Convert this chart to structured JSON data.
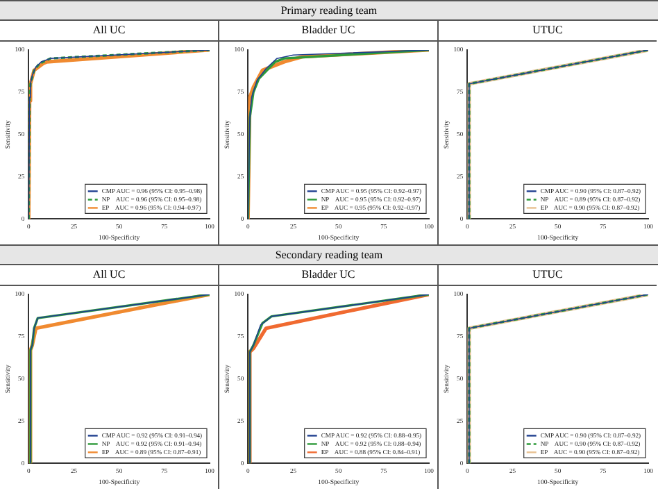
{
  "chart_data": [
    {
      "type": "other",
      "title": "Primary reading team"
    },
    {
      "type": "line",
      "title": "All UC",
      "xlabel": "100-Specificity",
      "ylabel": "Sensitivity",
      "xlim": [
        0,
        100
      ],
      "ylim": [
        0,
        100
      ],
      "xticks": [
        0,
        25,
        50,
        75,
        100
      ],
      "yticks": [
        0,
        25,
        50,
        75,
        100
      ],
      "grid": false,
      "legend": "bottom right",
      "marker": "none",
      "series": [
        {
          "name": "CMP AUC = 0.96 (95% CI: 0.95–0.98)",
          "color": "#1f3f8f",
          "line_style": "solid",
          "x": [
            0,
            0.5,
            1,
            2,
            4,
            7,
            12,
            100
          ],
          "values": [
            0,
            72,
            80,
            85,
            90,
            93,
            95,
            100
          ]
        },
        {
          "name": "NP    AUC = 0.96 (95% CI: 0.95–0.98)",
          "color": "#2e9a3a",
          "line_style": "dashed",
          "x": [
            0,
            0.5,
            1,
            3,
            6,
            12,
            100
          ],
          "values": [
            0,
            72,
            80,
            88,
            92,
            95,
            100
          ]
        },
        {
          "name": "EP    AUC = 0.96 (95% CI: 0.94–0.97)",
          "color": "#f08a30",
          "line_style": "solid",
          "x": [
            0,
            0.5,
            1,
            3,
            8,
            10,
            100
          ],
          "values": [
            0,
            70,
            80,
            88,
            92,
            93,
            100
          ]
        }
      ]
    },
    {
      "type": "line",
      "title": "Bladder UC",
      "xlabel": "100-Specificity",
      "ylabel": "Sensitivity",
      "xlim": [
        0,
        100
      ],
      "ylim": [
        0,
        100
      ],
      "xticks": [
        0,
        25,
        50,
        75,
        100
      ],
      "yticks": [
        0,
        25,
        50,
        75,
        100
      ],
      "grid": false,
      "legend": "bottom right",
      "marker": "none",
      "series": [
        {
          "name": "CMP AUC = 0.95 (95% CI: 0.92–0.97)",
          "color": "#1f3f8f",
          "line_style": "solid",
          "x": [
            0,
            1,
            2,
            5,
            10,
            16,
            25,
            100
          ],
          "values": [
            0,
            60,
            72,
            82,
            89,
            95,
            97,
            100
          ]
        },
        {
          "name": "NP    AUC = 0.95 (95% CI: 0.92–0.97)",
          "color": "#2e9a3a",
          "line_style": "solid",
          "x": [
            0,
            1,
            3,
            6,
            15,
            20,
            100
          ],
          "values": [
            0,
            60,
            75,
            83,
            93,
            95,
            100
          ]
        },
        {
          "name": "EP    AUC = 0.95 (95% CI: 0.92–0.97)",
          "color": "#f08a30",
          "line_style": "solid",
          "x": [
            0,
            1,
            3,
            8,
            20,
            30,
            100
          ],
          "values": [
            0,
            72,
            78,
            88,
            93,
            96,
            100
          ]
        }
      ]
    },
    {
      "type": "line",
      "title": "UTUC",
      "xlabel": "100-Specificity",
      "ylabel": "Sensitivity",
      "xlim": [
        0,
        100
      ],
      "ylim": [
        0,
        100
      ],
      "xticks": [
        0,
        25,
        50,
        75,
        100
      ],
      "yticks": [
        0,
        25,
        50,
        75,
        100
      ],
      "grid": false,
      "legend": "bottom right",
      "marker": "none",
      "series": [
        {
          "name": "CMP AUC = 0.90 (95% CI: 0.87–0.92)",
          "color": "#1f3f8f",
          "line_style": "solid",
          "x": [
            1,
            1,
            100
          ],
          "values": [
            0,
            80,
            100
          ]
        },
        {
          "name": "NP    AUC = 0.89 (95% CI: 0.87–0.92)",
          "color": "#2e9a3a",
          "line_style": "dashed",
          "x": [
            1,
            1,
            100
          ],
          "values": [
            0,
            80,
            100
          ]
        },
        {
          "name": "EP    AUC = 0.90 (95% CI: 0.87–0.92)",
          "color": "#e8c090",
          "line_style": "solid",
          "x": [
            1,
            1,
            100
          ],
          "values": [
            0,
            80,
            100
          ]
        }
      ]
    },
    {
      "type": "other",
      "title": "Secondary reading team"
    },
    {
      "type": "line",
      "title": "All UC",
      "xlabel": "100-Specificity",
      "ylabel": "Sensitivity",
      "xlim": [
        0,
        100
      ],
      "ylim": [
        0,
        100
      ],
      "xticks": [
        0,
        25,
        50,
        75,
        100
      ],
      "yticks": [
        0,
        25,
        50,
        75,
        100
      ],
      "grid": false,
      "legend": "bottom right",
      "marker": "none",
      "series": [
        {
          "name": "CMP AUC = 0.92 (95% CI: 0.91–0.94)",
          "color": "#1f3f8f",
          "line_style": "solid",
          "x": [
            1,
            1,
            2,
            3,
            5,
            100
          ],
          "values": [
            0,
            67,
            70,
            80,
            86,
            100
          ]
        },
        {
          "name": "NP    AUC = 0.92 (95% CI: 0.91–0.94)",
          "color": "#2e9a3a",
          "line_style": "solid",
          "x": [
            1,
            1,
            2,
            3,
            5,
            100
          ],
          "values": [
            0,
            67,
            70,
            80,
            86,
            100
          ]
        },
        {
          "name": "EP    AUC = 0.89 (95% CI: 0.87–0.91)",
          "color": "#f08a30",
          "line_style": "solid",
          "x": [
            1,
            1,
            2,
            4,
            100
          ],
          "values": [
            0,
            67,
            70,
            80,
            100
          ]
        }
      ]
    },
    {
      "type": "line",
      "title": "Bladder UC",
      "xlabel": "100-Specificity",
      "ylabel": "Sensitivity",
      "xlim": [
        0,
        100
      ],
      "ylim": [
        0,
        100
      ],
      "xticks": [
        0,
        25,
        50,
        75,
        100
      ],
      "yticks": [
        0,
        25,
        50,
        75,
        100
      ],
      "grid": false,
      "legend": "bottom right",
      "marker": "none",
      "series": [
        {
          "name": "CMP AUC = 0.92 (95% CI: 0.88–0.95)",
          "color": "#1f3f8f",
          "line_style": "solid",
          "x": [
            1,
            1,
            3,
            7,
            13,
            100
          ],
          "values": [
            0,
            66,
            70,
            82,
            87,
            100
          ]
        },
        {
          "name": "NP    AUC = 0.92 (95% CI: 0.88–0.94)",
          "color": "#2e9a3a",
          "line_style": "solid",
          "x": [
            1,
            1,
            3,
            8,
            13,
            100
          ],
          "values": [
            0,
            66,
            70,
            83,
            87,
            100
          ]
        },
        {
          "name": "EP    AUC = 0.88 (95% CI: 0.84–0.91)",
          "color": "#f06a30",
          "line_style": "solid",
          "x": [
            1,
            1,
            3,
            10,
            100
          ],
          "values": [
            0,
            66,
            68,
            80,
            100
          ]
        }
      ]
    },
    {
      "type": "line",
      "title": "UTUC",
      "xlabel": "100-Specificity",
      "ylabel": "Sensitivity",
      "xlim": [
        0,
        100
      ],
      "ylim": [
        0,
        100
      ],
      "xticks": [
        0,
        25,
        50,
        75,
        100
      ],
      "yticks": [
        0,
        25,
        50,
        75,
        100
      ],
      "grid": false,
      "legend": "bottom right",
      "marker": "none",
      "series": [
        {
          "name": "CMP AUC = 0.90 (95% CI: 0.87–0.92)",
          "color": "#1f3f8f",
          "line_style": "solid",
          "x": [
            1,
            1,
            100
          ],
          "values": [
            0,
            80,
            100
          ]
        },
        {
          "name": "NP    AUC = 0.90 (95% CI: 0.87–0.92)",
          "color": "#2e9a3a",
          "line_style": "dashed",
          "x": [
            1,
            1,
            100
          ],
          "values": [
            0,
            80,
            100
          ]
        },
        {
          "name": "EP    AUC = 0.90 (95% CI: 0.87–0.92)",
          "color": "#e8c090",
          "line_style": "solid",
          "x": [
            1,
            1,
            100
          ],
          "values": [
            0,
            80,
            100
          ]
        }
      ]
    }
  ]
}
